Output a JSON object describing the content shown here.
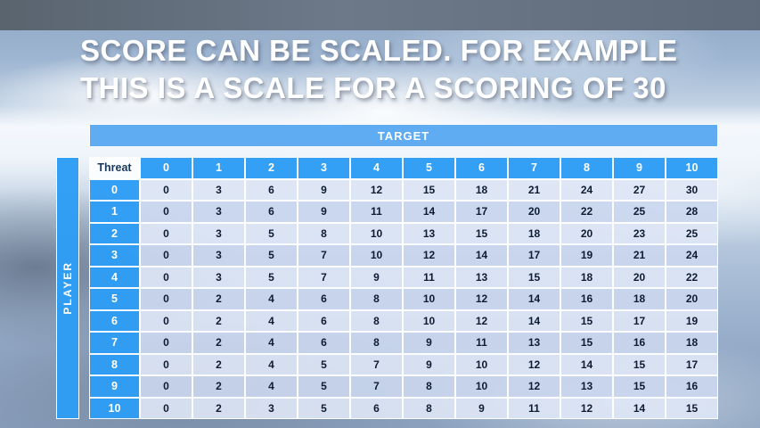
{
  "slide": {
    "title_line1": "SCORE CAN BE SCALED. FOR EXAMPLE",
    "title_line2": "THIS IS A SCALE FOR A SCORING OF 30"
  },
  "table": {
    "target_label": "TARGET",
    "player_label": "PLAYER",
    "corner_label": "Threat",
    "column_headers": [
      "0",
      "1",
      "2",
      "3",
      "4",
      "5",
      "6",
      "7",
      "8",
      "9",
      "10"
    ],
    "rows": [
      {
        "threat": "0",
        "values": [
          0,
          3,
          6,
          9,
          12,
          15,
          18,
          21,
          24,
          27,
          30
        ]
      },
      {
        "threat": "1",
        "values": [
          0,
          3,
          6,
          9,
          11,
          14,
          17,
          20,
          22,
          25,
          28
        ]
      },
      {
        "threat": "2",
        "values": [
          0,
          3,
          5,
          8,
          10,
          13,
          15,
          18,
          20,
          23,
          25
        ]
      },
      {
        "threat": "3",
        "values": [
          0,
          3,
          5,
          7,
          10,
          12,
          14,
          17,
          19,
          21,
          24
        ]
      },
      {
        "threat": "4",
        "values": [
          0,
          3,
          5,
          7,
          9,
          11,
          13,
          15,
          18,
          20,
          22
        ]
      },
      {
        "threat": "5",
        "values": [
          0,
          2,
          4,
          6,
          8,
          10,
          12,
          14,
          16,
          18,
          20
        ]
      },
      {
        "threat": "6",
        "values": [
          0,
          2,
          4,
          6,
          8,
          10,
          12,
          14,
          15,
          17,
          19
        ]
      },
      {
        "threat": "7",
        "values": [
          0,
          2,
          4,
          6,
          8,
          9,
          11,
          13,
          15,
          16,
          18
        ]
      },
      {
        "threat": "8",
        "values": [
          0,
          2,
          4,
          5,
          7,
          9,
          10,
          12,
          14,
          15,
          17
        ]
      },
      {
        "threat": "9",
        "values": [
          0,
          2,
          4,
          5,
          7,
          8,
          10,
          12,
          13,
          15,
          16
        ]
      },
      {
        "threat": "10",
        "values": [
          0,
          2,
          3,
          5,
          6,
          8,
          9,
          11,
          12,
          14,
          15
        ]
      }
    ]
  },
  "colors": {
    "header_blue": "#2d9df5",
    "target_bar_blue": "#58a9f2",
    "row_light": "#dfe7f6",
    "row_dark": "#cbd7ee",
    "corner_text": "#17375e",
    "cell_text": "#0d1b33",
    "title_text": "#ffffff",
    "top_band": "#64707f"
  }
}
